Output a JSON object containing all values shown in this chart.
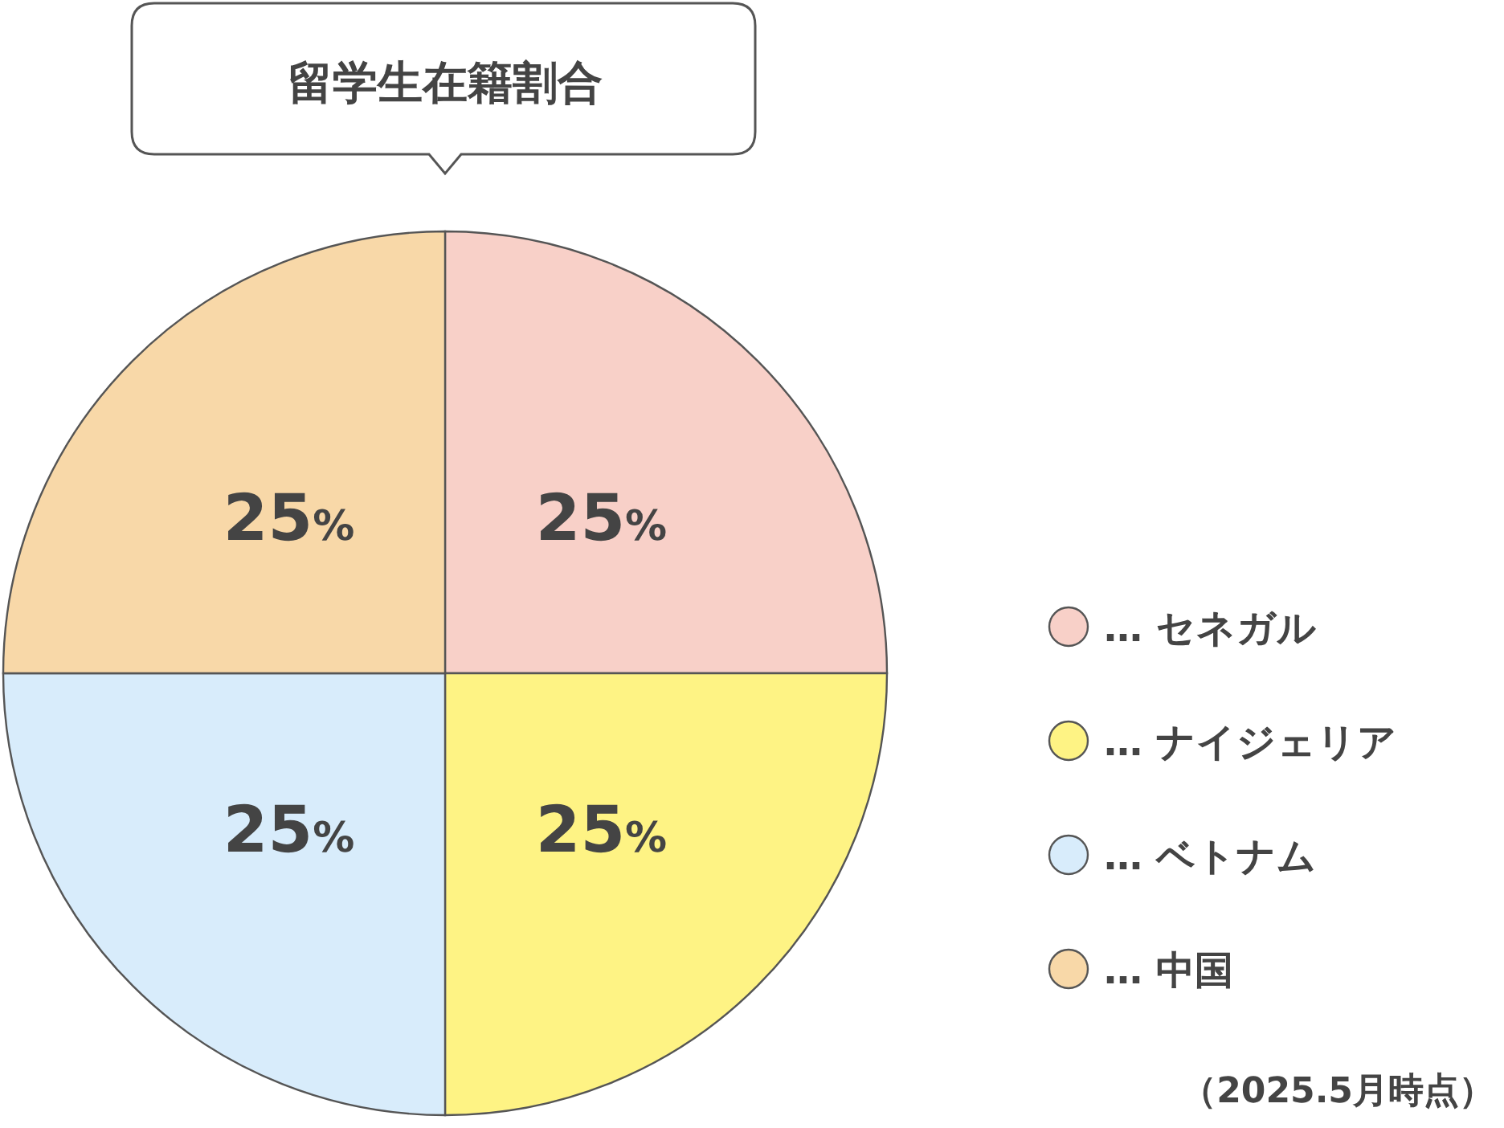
{
  "chart_data": {
    "type": "pie",
    "title": "留学生在籍割合",
    "categories": [
      "… セネガル",
      "… ナイジェリア",
      "… ベトナム",
      "… 中国"
    ],
    "values": [
      25,
      25,
      25,
      25
    ],
    "colors": [
      "#f8d0c8",
      "#fef384",
      "#d8ecfb",
      "#f8d8a8"
    ],
    "value_labels": [
      "25%",
      "25%",
      "25%",
      "25%"
    ],
    "legend": "right",
    "annotations": [
      "（2025.5月時点）"
    ]
  }
}
